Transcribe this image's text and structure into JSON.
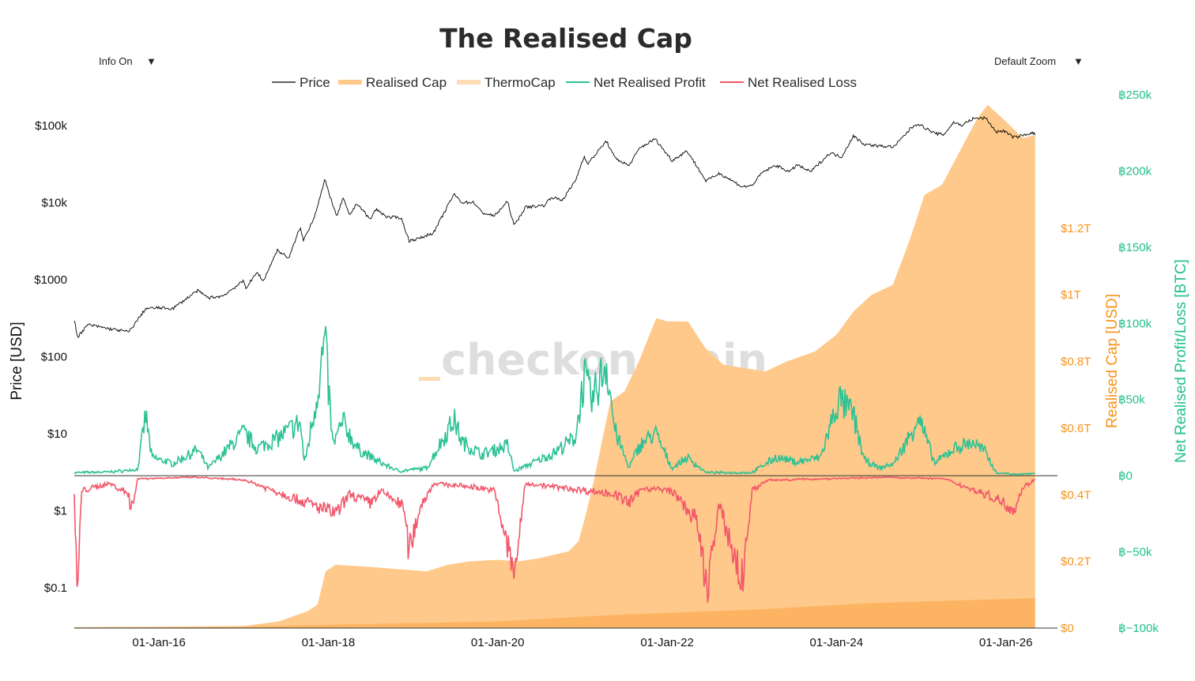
{
  "title": "The Realised Cap",
  "controls": {
    "info_label": "Info On",
    "zoom_label": "Default Zoom",
    "arrow": "▼"
  },
  "watermark": "checkonchain",
  "colors": {
    "price": "#000000",
    "realised_cap": "#fec98a",
    "thermocap": "#fdb462",
    "thermocap_legend": "#fddcb4",
    "profit": "#2cc295",
    "loss": "#f2576b",
    "cap_axis": "#f7931a",
    "pl_axis": "#22c08a",
    "watermark": "#dedede"
  },
  "chart_data": {
    "type": "line",
    "title": "The Realised Cap",
    "x_ticks": [
      "01-Jan-16",
      "01-Jan-18",
      "01-Jan-20",
      "01-Jan-22",
      "01-Jan-24",
      "01-Jan-26"
    ],
    "x_range": [
      "2015-01-01",
      "2026-05-15"
    ],
    "y_price": {
      "label": "Price [USD]",
      "scale": "log",
      "range": [
        0.03,
        250000
      ],
      "ticks": [
        "$0.1",
        "$1",
        "$10",
        "$100",
        "$1000",
        "$10k",
        "$100k"
      ]
    },
    "y_cap": {
      "label": "Realised Cap [USD]",
      "range": [
        0,
        1.6
      ],
      "ticks": [
        "$0",
        "$0.2T",
        "$0.4T",
        "$0.6T",
        "$0.8T",
        "$1T",
        "$1.2T"
      ]
    },
    "y_pl": {
      "label": "Net Realised Profit/Loss [BTC]",
      "range": [
        -100000,
        250000
      ],
      "ticks": [
        "฿−100k",
        "฿−50k",
        "฿0",
        "฿50k",
        "฿100k",
        "฿150k",
        "฿200k",
        "฿250k"
      ]
    },
    "legend": [
      "Price",
      "Realised Cap",
      "ThermoCap",
      "Net Realised Profit",
      "Net Realised Loss"
    ],
    "series": [
      {
        "name": "Price",
        "axis": "price",
        "points": [
          [
            "2015-01-01",
            300
          ],
          [
            "2015-01-15",
            180
          ],
          [
            "2015-03-01",
            260
          ],
          [
            "2015-06-01",
            230
          ],
          [
            "2015-08-25",
            210
          ],
          [
            "2015-11-05",
            420
          ],
          [
            "2016-01-01",
            430
          ],
          [
            "2016-03-01",
            420
          ],
          [
            "2016-06-15",
            720
          ],
          [
            "2016-08-01",
            580
          ],
          [
            "2016-10-01",
            610
          ],
          [
            "2016-12-31",
            960
          ],
          [
            "2017-01-10",
            780
          ],
          [
            "2017-03-01",
            1250
          ],
          [
            "2017-03-25",
            940
          ],
          [
            "2017-05-25",
            2400
          ],
          [
            "2017-07-15",
            1900
          ],
          [
            "2017-09-01",
            4800
          ],
          [
            "2017-09-15",
            3200
          ],
          [
            "2017-11-01",
            6500
          ],
          [
            "2017-12-17",
            19500
          ],
          [
            "2018-02-06",
            6500
          ],
          [
            "2018-03-05",
            11500
          ],
          [
            "2018-04-01",
            6800
          ],
          [
            "2018-05-05",
            9800
          ],
          [
            "2018-06-30",
            6000
          ],
          [
            "2018-07-25",
            8200
          ],
          [
            "2018-09-15",
            6400
          ],
          [
            "2018-11-10",
            6400
          ],
          [
            "2018-12-15",
            3200
          ],
          [
            "2019-02-01",
            3450
          ],
          [
            "2019-04-01",
            4100
          ],
          [
            "2019-06-26",
            12800
          ],
          [
            "2019-08-01",
            10000
          ],
          [
            "2019-09-20",
            10100
          ],
          [
            "2019-10-25",
            7400
          ],
          [
            "2019-12-18",
            6700
          ],
          [
            "2020-02-13",
            10300
          ],
          [
            "2020-03-12",
            5000
          ],
          [
            "2020-04-30",
            8700
          ],
          [
            "2020-07-20",
            9200
          ],
          [
            "2020-08-20",
            11800
          ],
          [
            "2020-10-05",
            10700
          ],
          [
            "2020-12-01",
            19000
          ],
          [
            "2021-01-08",
            40000
          ],
          [
            "2021-01-25",
            32000
          ],
          [
            "2021-04-14",
            63000
          ],
          [
            "2021-05-20",
            38000
          ],
          [
            "2021-07-20",
            30000
          ],
          [
            "2021-09-05",
            51000
          ],
          [
            "2021-11-10",
            67000
          ],
          [
            "2022-01-22",
            35000
          ],
          [
            "2022-03-28",
            47000
          ],
          [
            "2022-06-18",
            19000
          ],
          [
            "2022-08-15",
            24000
          ],
          [
            "2022-11-21",
            16000
          ],
          [
            "2023-01-01",
            16500
          ],
          [
            "2023-02-15",
            24500
          ],
          [
            "2023-04-14",
            30400
          ],
          [
            "2023-06-15",
            25000
          ],
          [
            "2023-07-14",
            31000
          ],
          [
            "2023-09-11",
            25000
          ],
          [
            "2023-12-05",
            44000
          ],
          [
            "2024-01-23",
            39000
          ],
          [
            "2024-03-14",
            73000
          ],
          [
            "2024-05-01",
            57000
          ],
          [
            "2024-07-05",
            54000
          ],
          [
            "2024-09-06",
            53000
          ],
          [
            "2024-11-20",
            94000
          ],
          [
            "2024-12-17",
            106000
          ],
          [
            "2025-02-28",
            79000
          ],
          [
            "2025-04-08",
            76000
          ],
          [
            "2025-05-22",
            111000
          ],
          [
            "2025-06-22",
            100000
          ],
          [
            "2025-08-14",
            123000
          ],
          [
            "2025-10-06",
            125000
          ],
          [
            "2025-11-21",
            82000
          ],
          [
            "2025-12-20",
            86000
          ],
          [
            "2026-02-05",
            70000
          ],
          [
            "2026-03-15",
            74000
          ],
          [
            "2026-04-15",
            80000
          ],
          [
            "2026-05-10",
            78000
          ]
        ]
      },
      {
        "name": "Realised Cap",
        "axis": "cap",
        "points": [
          [
            "2015-01-01",
            0.003
          ],
          [
            "2016-01-01",
            0.004
          ],
          [
            "2017-01-01",
            0.006
          ],
          [
            "2017-06-01",
            0.02
          ],
          [
            "2017-10-01",
            0.05
          ],
          [
            "2017-11-15",
            0.07
          ],
          [
            "2017-12-20",
            0.17
          ],
          [
            "2018-02-01",
            0.19
          ],
          [
            "2018-06-01",
            0.185
          ],
          [
            "2018-12-01",
            0.175
          ],
          [
            "2019-03-01",
            0.17
          ],
          [
            "2019-06-01",
            0.19
          ],
          [
            "2019-09-01",
            0.2
          ],
          [
            "2020-01-01",
            0.205
          ],
          [
            "2020-04-01",
            0.2
          ],
          [
            "2020-07-01",
            0.21
          ],
          [
            "2020-11-01",
            0.23
          ],
          [
            "2020-12-15",
            0.26
          ],
          [
            "2021-01-15",
            0.34
          ],
          [
            "2021-02-15",
            0.43
          ],
          [
            "2021-05-01",
            0.68
          ],
          [
            "2021-07-01",
            0.71
          ],
          [
            "2021-09-01",
            0.8
          ],
          [
            "2021-11-15",
            0.93
          ],
          [
            "2022-01-01",
            0.92
          ],
          [
            "2022-04-01",
            0.92
          ],
          [
            "2022-06-15",
            0.84
          ],
          [
            "2022-09-01",
            0.79
          ],
          [
            "2022-12-01",
            0.78
          ],
          [
            "2023-03-01",
            0.77
          ],
          [
            "2023-06-01",
            0.8
          ],
          [
            "2023-10-01",
            0.83
          ],
          [
            "2024-01-01",
            0.88
          ],
          [
            "2024-03-15",
            0.95
          ],
          [
            "2024-06-01",
            1.0
          ],
          [
            "2024-09-01",
            1.03
          ],
          [
            "2024-11-15",
            1.17
          ],
          [
            "2025-01-15",
            1.3
          ],
          [
            "2025-04-01",
            1.33
          ],
          [
            "2025-07-01",
            1.45
          ],
          [
            "2025-09-01",
            1.53
          ],
          [
            "2025-10-15",
            1.57
          ],
          [
            "2026-01-01",
            1.52
          ],
          [
            "2026-03-15",
            1.47
          ],
          [
            "2026-05-10",
            1.48
          ]
        ]
      },
      {
        "name": "ThermoCap",
        "axis": "cap",
        "points": [
          [
            "2015-01-01",
            0.001
          ],
          [
            "2017-01-01",
            0.004
          ],
          [
            "2018-01-01",
            0.01
          ],
          [
            "2020-01-01",
            0.02
          ],
          [
            "2021-06-01",
            0.04
          ],
          [
            "2023-01-01",
            0.055
          ],
          [
            "2024-06-01",
            0.075
          ],
          [
            "2026-05-10",
            0.09
          ]
        ]
      },
      {
        "name": "Net Realised Profit",
        "axis": "pl",
        "points": [
          [
            "2015-01-01",
            2000
          ],
          [
            "2015-06-01",
            2500
          ],
          [
            "2015-10-01",
            4000
          ],
          [
            "2015-11-05",
            40000
          ],
          [
            "2015-12-01",
            12000
          ],
          [
            "2016-03-01",
            8000
          ],
          [
            "2016-06-15",
            17000
          ],
          [
            "2016-08-01",
            5000
          ],
          [
            "2016-12-31",
            28000
          ],
          [
            "2017-03-01",
            18000
          ],
          [
            "2017-06-01",
            25000
          ],
          [
            "2017-09-01",
            35000
          ],
          [
            "2017-09-20",
            8000
          ],
          [
            "2017-11-01",
            42000
          ],
          [
            "2017-12-17",
            88000
          ],
          [
            "2018-01-20",
            20000
          ],
          [
            "2018-03-05",
            35000
          ],
          [
            "2018-05-05",
            18000
          ],
          [
            "2018-07-25",
            10000
          ],
          [
            "2018-11-01",
            3000
          ],
          [
            "2019-03-01",
            5000
          ],
          [
            "2019-06-26",
            37000
          ],
          [
            "2019-08-01",
            22000
          ],
          [
            "2019-10-25",
            14000
          ],
          [
            "2020-02-13",
            20000
          ],
          [
            "2020-03-12",
            3000
          ],
          [
            "2020-08-20",
            14000
          ],
          [
            "2020-12-01",
            25000
          ],
          [
            "2021-01-08",
            65000
          ],
          [
            "2021-02-10",
            48000
          ],
          [
            "2021-04-14",
            75000
          ],
          [
            "2021-05-20",
            30000
          ],
          [
            "2021-07-20",
            5000
          ],
          [
            "2021-09-05",
            20000
          ],
          [
            "2021-11-10",
            28000
          ],
          [
            "2022-01-22",
            5000
          ],
          [
            "2022-03-28",
            12000
          ],
          [
            "2022-06-18",
            2000
          ],
          [
            "2023-01-01",
            2000
          ],
          [
            "2023-04-14",
            12000
          ],
          [
            "2023-07-14",
            9000
          ],
          [
            "2023-10-25",
            12000
          ],
          [
            "2023-12-05",
            32000
          ],
          [
            "2024-01-11",
            50000
          ],
          [
            "2024-03-14",
            40000
          ],
          [
            "2024-05-01",
            10000
          ],
          [
            "2024-07-05",
            5000
          ],
          [
            "2024-09-06",
            8000
          ],
          [
            "2024-11-20",
            28000
          ],
          [
            "2024-12-17",
            40000
          ],
          [
            "2025-02-28",
            8000
          ],
          [
            "2025-05-22",
            18000
          ],
          [
            "2025-08-14",
            22000
          ],
          [
            "2025-10-06",
            15000
          ],
          [
            "2025-11-21",
            2000
          ],
          [
            "2026-02-05",
            1000
          ],
          [
            "2026-05-10",
            1500
          ]
        ]
      },
      {
        "name": "Net Realised Loss",
        "axis": "pl",
        "points": [
          [
            "2015-01-01",
            -15000
          ],
          [
            "2015-01-15",
            -80000
          ],
          [
            "2015-02-01",
            -10000
          ],
          [
            "2015-06-01",
            -5000
          ],
          [
            "2015-08-25",
            -12000
          ],
          [
            "2015-09-01",
            -25000
          ],
          [
            "2015-10-01",
            -2000
          ],
          [
            "2016-06-01",
            -1000
          ],
          [
            "2017-01-10",
            -3000
          ],
          [
            "2018-02-06",
            -25000
          ],
          [
            "2018-04-01",
            -12000
          ],
          [
            "2018-06-30",
            -18000
          ],
          [
            "2018-08-15",
            -10000
          ],
          [
            "2018-11-20",
            -20000
          ],
          [
            "2018-12-15",
            -50000
          ],
          [
            "2019-02-01",
            -20000
          ],
          [
            "2019-04-01",
            -5000
          ],
          [
            "2019-10-25",
            -8000
          ],
          [
            "2019-12-18",
            -10000
          ],
          [
            "2020-03-12",
            -65000
          ],
          [
            "2020-04-30",
            -5000
          ],
          [
            "2021-05-20",
            -12000
          ],
          [
            "2021-07-20",
            -18000
          ],
          [
            "2021-09-20",
            -8000
          ],
          [
            "2022-01-22",
            -10000
          ],
          [
            "2022-05-10",
            -30000
          ],
          [
            "2022-06-18",
            -75000
          ],
          [
            "2022-08-15",
            -20000
          ],
          [
            "2022-11-21",
            -70000
          ],
          [
            "2023-01-01",
            -10000
          ],
          [
            "2023-03-10",
            -3000
          ],
          [
            "2024-08-05",
            -1000
          ],
          [
            "2025-04-08",
            -2000
          ],
          [
            "2025-11-21",
            -15000
          ],
          [
            "2026-02-05",
            -22000
          ],
          [
            "2026-03-15",
            -8000
          ],
          [
            "2026-05-10",
            -2000
          ]
        ]
      }
    ]
  }
}
